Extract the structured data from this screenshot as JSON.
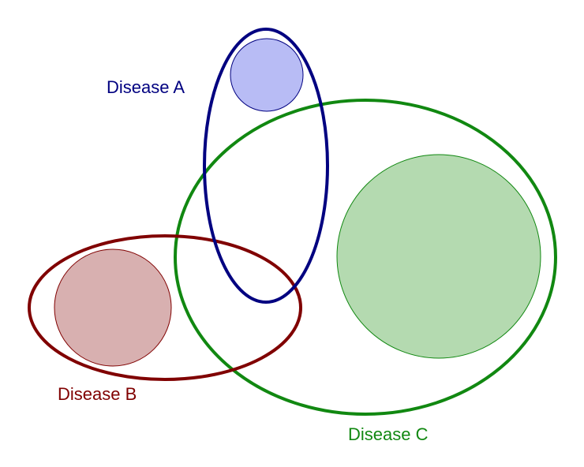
{
  "diagram": {
    "sets": [
      {
        "id": "a",
        "label": "Disease A",
        "color": "#000080",
        "fill": "#b8bcf5"
      },
      {
        "id": "b",
        "label": "Disease B",
        "color": "#800000",
        "fill": "#d8b0b0"
      },
      {
        "id": "c",
        "label": "Disease C",
        "color": "#118811",
        "fill": "#b4dab0"
      }
    ]
  }
}
